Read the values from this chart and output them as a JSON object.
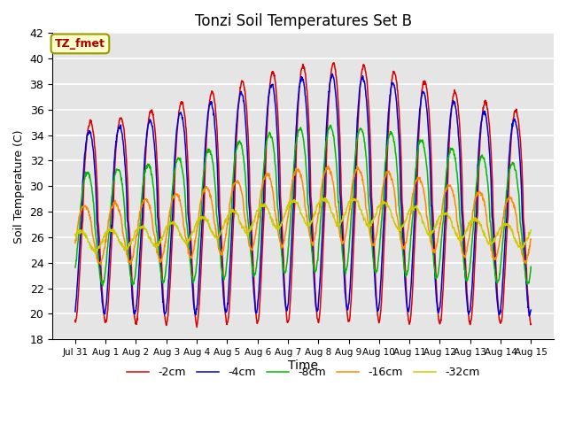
{
  "title": "Tonzi Soil Temperatures Set B",
  "xlabel": "Time",
  "ylabel": "Soil Temperature (C)",
  "annotation": "TZ_fmet",
  "ylim": [
    18,
    42
  ],
  "n_days": 15,
  "x_tick_labels": [
    "Jul 31",
    "Aug 1",
    "Aug 2",
    "Aug 3",
    "Aug 4",
    "Aug 5",
    "Aug 6",
    "Aug 7",
    "Aug 8",
    "Aug 9",
    "Aug 10",
    "Aug 11",
    "Aug 12",
    "Aug 13",
    "Aug 14",
    "Aug 15"
  ],
  "series": {
    "-2cm": {
      "color": "#dd0000",
      "mean": 27.0,
      "amp": 7.5,
      "phase_lag": 0.0,
      "depth_amp_scale": 1.0
    },
    "-4cm": {
      "color": "#0000dd",
      "mean": 27.0,
      "amp": 6.8,
      "phase_lag": 0.25,
      "depth_amp_scale": 0.95
    },
    "-8cm": {
      "color": "#00bb00",
      "mean": 26.5,
      "amp": 4.2,
      "phase_lag": 0.65,
      "depth_amp_scale": 0.7
    },
    "-16cm": {
      "color": "#ff8800",
      "mean": 26.0,
      "amp": 2.2,
      "phase_lag": 1.2,
      "depth_amp_scale": 0.5
    },
    "-32cm": {
      "color": "#cccc00",
      "mean": 25.5,
      "amp": 0.75,
      "phase_lag": 2.1,
      "depth_amp_scale": 0.3
    }
  },
  "slow_trend_amp": 2.5,
  "slow_trend_peak_day": 8.5,
  "bg_color": "#e5e5e5",
  "grid_color": "#ffffff",
  "legend_order": [
    "-2cm",
    "-4cm",
    "-8cm",
    "-16cm",
    "-32cm"
  ]
}
